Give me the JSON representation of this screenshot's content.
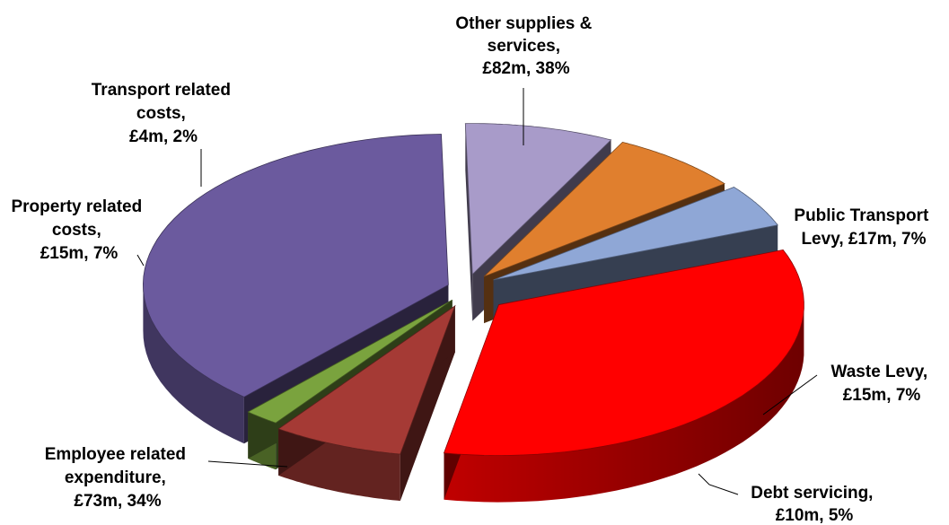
{
  "chart_data": {
    "type": "pie",
    "title": "",
    "slices": [
      {
        "name": "Other supplies & services",
        "value": 82,
        "percent": 38,
        "color": "#6b5a9e",
        "label_lines": [
          "Other supplies &",
          "services,",
          "£82m, 38%"
        ]
      },
      {
        "name": "Public Transport Levy",
        "value": 17,
        "percent": 7,
        "color": "#a89bc9",
        "label_lines": [
          "Public Transport",
          "Levy, £17m, 7%"
        ]
      },
      {
        "name": "Waste Levy",
        "value": 15,
        "percent": 7,
        "color": "#e07f2e",
        "label_lines": [
          "Waste Levy,",
          "£15m, 7%"
        ]
      },
      {
        "name": "Debt servicing",
        "value": 10,
        "percent": 5,
        "color": "#8fa7d6",
        "label_lines": [
          "Debt servicing,",
          "£10m, 5%"
        ]
      },
      {
        "name": "Employee related expenditure",
        "value": 73,
        "percent": 34,
        "color": "#ff0000",
        "label_lines": [
          "Employee related",
          "expenditure,",
          "£73m, 34%"
        ]
      },
      {
        "name": "Property related costs",
        "value": 15,
        "percent": 7,
        "color": "#a53a35",
        "label_lines": [
          "Property related",
          "costs,",
          "£15m, 7%"
        ]
      },
      {
        "name": "Transport related costs",
        "value": 4,
        "percent": 2,
        "color": "#7aa33e",
        "label_lines": [
          "Transport related",
          "costs,",
          "£4m, 2%"
        ]
      }
    ]
  }
}
